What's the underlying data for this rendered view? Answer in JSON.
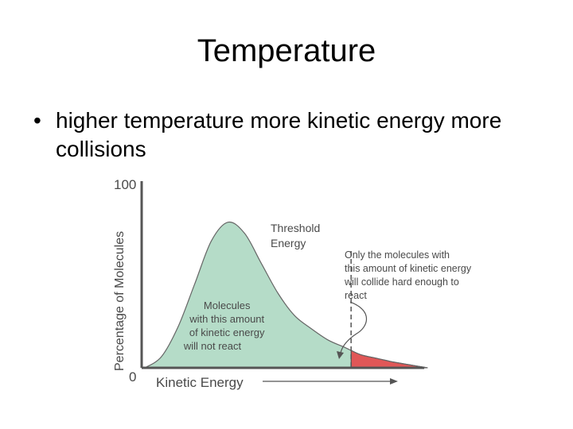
{
  "slide": {
    "title": "Temperature",
    "bullet_marker": "•",
    "bullet_text": "higher temperature more kinetic energy more collisions"
  },
  "chart_data": {
    "type": "area",
    "title": "",
    "xlabel": "Kinetic Energy",
    "ylabel": "Percentage of Molecules",
    "y_ticks": [
      "100",
      "0"
    ],
    "ylim": [
      0,
      100
    ],
    "grid": false,
    "series": [
      {
        "name": "",
        "x": [
          0,
          0.05,
          0.1,
          0.15,
          0.2,
          0.25,
          0.3,
          0.35,
          0.4,
          0.45,
          0.5,
          0.55,
          0.6,
          0.65,
          0.7,
          0.75,
          0.8,
          0.85,
          0.9,
          0.95,
          1.0
        ],
        "y": [
          0,
          6,
          22,
          45,
          68,
          78,
          72,
          56,
          40,
          28,
          21,
          15,
          11,
          7,
          5,
          3,
          1.5,
          0,
          0,
          0,
          0
        ]
      }
    ],
    "threshold_x": 0.62,
    "annotations": {
      "threshold": [
        "Threshold",
        "Energy"
      ],
      "react": [
        "Only the molecules with",
        "this amount of kinetic energy",
        "will collide hard enough to",
        "react"
      ],
      "no_react": [
        "Molecules",
        "with this amount",
        "of kinetic energy",
        "will not react"
      ]
    },
    "colors": {
      "below_threshold": "#b5dcc8",
      "above_threshold": "#e05757",
      "curve_stroke": "#666666",
      "axis": "#555555",
      "text": "#4a4a4a"
    }
  }
}
